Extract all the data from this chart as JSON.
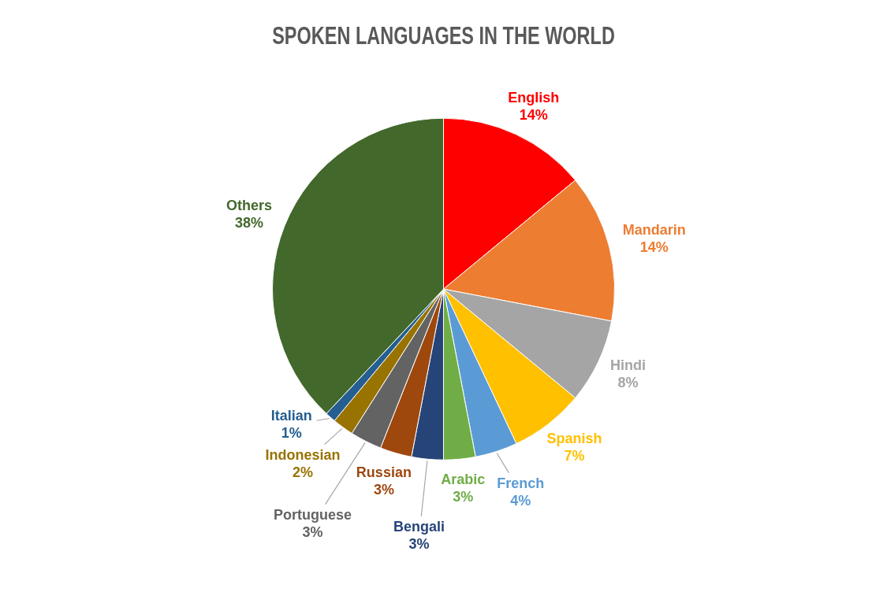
{
  "chart_data": {
    "type": "pie",
    "title": "SPOKEN LANGUAGES IN THE WORLD",
    "categories": [
      "English",
      "Mandarin",
      "Hindi",
      "Spanish",
      "French",
      "Arabic",
      "Bengali",
      "Russian",
      "Portuguese",
      "Indonesian",
      "Italian",
      "Others"
    ],
    "values": [
      14,
      14,
      8,
      7,
      4,
      3,
      3,
      3,
      3,
      2,
      1,
      38
    ],
    "colors": [
      "#ff0000",
      "#ed7d31",
      "#a5a5a5",
      "#ffc000",
      "#5b9bd5",
      "#70ad47",
      "#264478",
      "#9e480e",
      "#636363",
      "#997300",
      "#255e91",
      "#43682b"
    ],
    "value_labels": [
      "14%",
      "14%",
      "8%",
      "7%",
      "4%",
      "3%",
      "3%",
      "3%",
      "3%",
      "2%",
      "1%",
      "38%"
    ],
    "legend": false
  }
}
